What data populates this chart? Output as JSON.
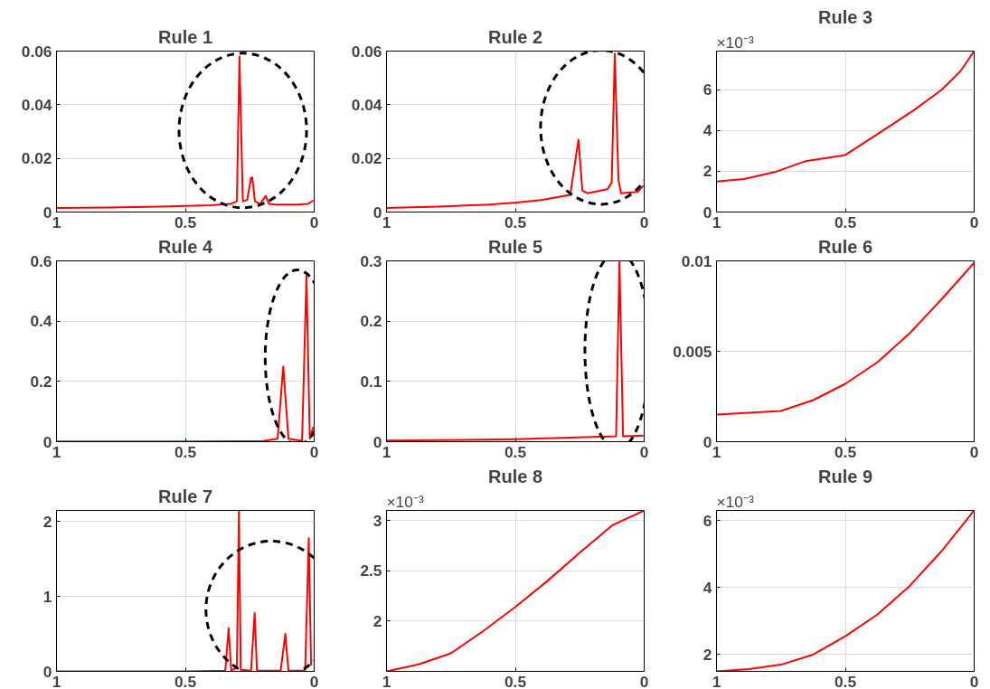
{
  "chart_data": [
    {
      "type": "line",
      "title": "Rule 1",
      "x": [
        1,
        0.8,
        0.6,
        0.4,
        0.325,
        0.3,
        0.29,
        0.277,
        0.26,
        0.245,
        0.24,
        0.23,
        0.21,
        0.188,
        0.175,
        0.15,
        0.067,
        0.025,
        0.003
      ],
      "series": [
        {
          "color": "#ff0000",
          "values": [
            0.0015,
            0.0017,
            0.002,
            0.0025,
            0.003,
            0.004,
            0.058,
            0.004,
            0.0045,
            0.0128,
            0.0128,
            0.004,
            0.003,
            0.006,
            0.003,
            0.0028,
            0.0028,
            0.003,
            0.0043
          ]
        }
      ],
      "xlim": [
        1,
        0
      ],
      "ylim": [
        0,
        0.06
      ],
      "xticks": [
        1,
        0.5,
        0
      ],
      "yticks": [
        0,
        0.02,
        0.04,
        0.06
      ],
      "grid": true
    },
    {
      "type": "line",
      "title": "Rule 2",
      "x": [
        1,
        0.8,
        0.6,
        0.496,
        0.4,
        0.287,
        0.255,
        0.24,
        0.22,
        0.143,
        0.126,
        0.114,
        0.1,
        0.09,
        0.025,
        0.003
      ],
      "series": [
        {
          "color": "#ff0000",
          "values": [
            0.0015,
            0.002,
            0.0028,
            0.0035,
            0.0045,
            0.0064,
            0.027,
            0.008,
            0.007,
            0.0085,
            0.011,
            0.059,
            0.012,
            0.007,
            0.0075,
            0.0098
          ]
        }
      ],
      "xlim": [
        1,
        0
      ],
      "ylim": [
        0,
        0.06
      ],
      "xticks": [
        1,
        0.5,
        0
      ],
      "yticks": [
        0,
        0.02,
        0.04,
        0.06
      ],
      "grid": true
    },
    {
      "type": "line",
      "title": "Rule 3",
      "x": [
        1,
        0.894,
        0.774,
        0.654,
        0.5,
        0.354,
        0.234,
        0.126,
        0.054,
        0
      ],
      "series": [
        {
          "color": "#ff0000",
          "values": [
            1.5,
            1.62,
            1.96,
            2.5,
            2.8,
            4,
            5,
            6,
            6.9,
            7.9
          ]
        }
      ],
      "xlim": [
        1,
        0
      ],
      "ylim": [
        0,
        7.9
      ],
      "xticks": [
        1,
        0.5,
        0
      ],
      "yticks": [
        0,
        2,
        4,
        6
      ],
      "grid": true,
      "annotations": [
        "×10⁻³"
      ]
    },
    {
      "type": "line",
      "title": "Rule 4",
      "x": [
        1,
        0.5,
        0.2,
        0.142,
        0.12,
        0.1,
        0.047,
        0.03,
        0.017,
        0.003
      ],
      "series": [
        {
          "color": "#ff0000",
          "values": [
            0.001,
            0.001,
            0.002,
            0.01,
            0.25,
            0.01,
            0.003,
            0.55,
            0.01,
            0.05
          ]
        }
      ],
      "xlim": [
        1,
        0
      ],
      "ylim": [
        0,
        0.6
      ],
      "xticks": [
        1,
        0.5,
        0
      ],
      "yticks": [
        0,
        0.2,
        0.4,
        0.6
      ],
      "grid": true
    },
    {
      "type": "line",
      "title": "Rule 5",
      "x": [
        1,
        0.5,
        0.109,
        0.096,
        0.082,
        0.003
      ],
      "series": [
        {
          "color": "#ff0000",
          "values": [
            0.002,
            0.004,
            0.009,
            0.3,
            0.009,
            0.01
          ]
        }
      ],
      "xlim": [
        1,
        0
      ],
      "ylim": [
        0,
        0.3
      ],
      "xticks": [
        1,
        0.5,
        0
      ],
      "yticks": [
        0,
        0.1,
        0.2,
        0.3
      ],
      "grid": true
    },
    {
      "type": "line",
      "title": "Rule 6",
      "x": [
        1,
        0.875,
        0.75,
        0.625,
        0.5,
        0.375,
        0.25,
        0.125,
        0
      ],
      "series": [
        {
          "color": "#ff0000",
          "values": [
            0.0015,
            0.0016,
            0.0017,
            0.0023,
            0.0032,
            0.0044,
            0.006,
            0.0079,
            0.0099
          ]
        }
      ],
      "xlim": [
        1,
        0
      ],
      "ylim": [
        0,
        0.01
      ],
      "xticks": [
        1,
        0.5,
        0
      ],
      "yticks": [
        0,
        0.005,
        0.01
      ],
      "grid": true
    },
    {
      "type": "line",
      "title": "Rule 7",
      "x": [
        1,
        0.5,
        0.345,
        0.332,
        0.322,
        0.3,
        0.292,
        0.285,
        0.245,
        0.231,
        0.222,
        0.13,
        0.112,
        0.1,
        0.035,
        0.021,
        0.012
      ],
      "series": [
        {
          "color": "#ff0000",
          "values": [
            0,
            0,
            0.01,
            0.58,
            0.01,
            0.05,
            2.15,
            0.02,
            0.01,
            0.78,
            0.01,
            0.01,
            0.5,
            0.01,
            0.01,
            1.78,
            0.08
          ]
        }
      ],
      "xlim": [
        1,
        0
      ],
      "ylim": [
        0,
        2.15
      ],
      "xticks": [
        1,
        0.5,
        0
      ],
      "yticks": [
        0,
        1,
        2
      ],
      "grid": true
    },
    {
      "type": "line",
      "title": "Rule 8",
      "x": [
        1,
        0.875,
        0.75,
        0.625,
        0.5,
        0.375,
        0.25,
        0.125,
        0
      ],
      "series": [
        {
          "color": "#ff0000",
          "values": [
            1.5,
            1.57,
            1.68,
            1.9,
            2.14,
            2.4,
            2.68,
            2.95,
            3.1
          ]
        }
      ],
      "xlim": [
        1,
        0
      ],
      "ylim": [
        1.5,
        3.1
      ],
      "xticks": [
        1,
        0.5,
        0
      ],
      "yticks": [
        2,
        2.5,
        3
      ],
      "grid": true,
      "annotations": [
        "×10⁻³"
      ]
    },
    {
      "type": "line",
      "title": "Rule 9",
      "x": [
        1,
        0.875,
        0.75,
        0.625,
        0.5,
        0.375,
        0.25,
        0.125,
        0
      ],
      "series": [
        {
          "color": "#ff0000",
          "values": [
            1.5,
            1.57,
            1.7,
            2,
            2.55,
            3.2,
            4.05,
            5.1,
            6.3
          ]
        }
      ],
      "xlim": [
        1,
        0
      ],
      "ylim": [
        1.5,
        6.3
      ],
      "xticks": [
        1,
        0.5,
        0
      ],
      "yticks": [
        2,
        4,
        6
      ],
      "grid": true,
      "annotations": [
        "×10⁻³"
      ]
    }
  ]
}
